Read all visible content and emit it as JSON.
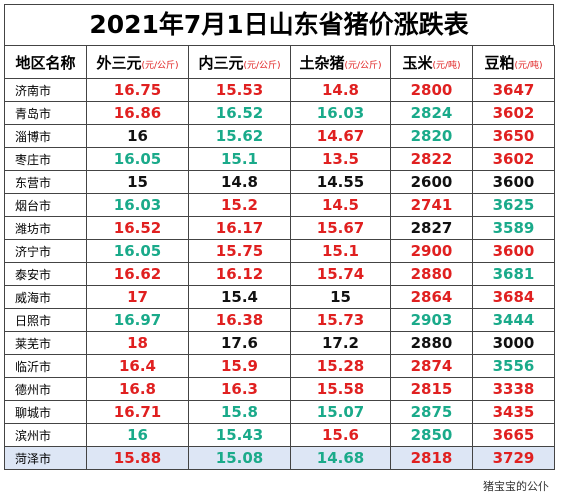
{
  "title": "2021年7月1日山东省猪价涨跌表",
  "table": {
    "headers": [
      {
        "name": "地区名称"
      },
      {
        "name": "外三元",
        "unit": "(元/公斤)"
      },
      {
        "name": "内三元",
        "unit": "(元/公斤)"
      },
      {
        "name": "土杂猪",
        "unit": "(元/公斤)"
      },
      {
        "name": "玉米",
        "unit": "(元/吨)"
      },
      {
        "name": "豆粕",
        "unit": "(元/吨)"
      }
    ],
    "rows": [
      [
        "济南市",
        "16.75",
        "15.53",
        "14.8",
        "2800",
        "3647"
      ],
      [
        "青岛市",
        "16.86",
        "16.52",
        "16.03",
        "2824",
        "3602"
      ],
      [
        "淄博市",
        "16",
        "15.62",
        "14.67",
        "2820",
        "3650"
      ],
      [
        "枣庄市",
        "16.05",
        "15.1",
        "13.5",
        "2822",
        "3602"
      ],
      [
        "东营市",
        "15",
        "14.8",
        "14.55",
        "2600",
        "3600"
      ],
      [
        "烟台市",
        "16.03",
        "15.2",
        "14.5",
        "2741",
        "3625"
      ],
      [
        "潍坊市",
        "16.52",
        "16.17",
        "15.67",
        "2827",
        "3589"
      ],
      [
        "济宁市",
        "16.05",
        "15.75",
        "15.1",
        "2900",
        "3600"
      ],
      [
        "泰安市",
        "16.62",
        "16.12",
        "15.74",
        "2880",
        "3681"
      ],
      [
        "威海市",
        "17",
        "15.4",
        "15",
        "2864",
        "3684"
      ],
      [
        "日照市",
        "16.97",
        "16.38",
        "15.73",
        "2903",
        "3444"
      ],
      [
        "莱芜市",
        "18",
        "17.6",
        "17.2",
        "2880",
        "3000"
      ],
      [
        "临沂市",
        "16.4",
        "15.9",
        "15.28",
        "2874",
        "3556"
      ],
      [
        "德州市",
        "16.8",
        "16.3",
        "15.58",
        "2815",
        "3338"
      ],
      [
        "聊城市",
        "16.71",
        "15.8",
        "15.07",
        "2875",
        "3435"
      ],
      [
        "滨州市",
        "16",
        "15.43",
        "15.6",
        "2850",
        "3665"
      ],
      [
        "菏泽市",
        "15.88",
        "15.08",
        "14.68",
        "2818",
        "3729"
      ]
    ],
    "colors": [
      [
        "#e02020",
        "#e02020",
        "#e02020",
        "#e02020",
        "#e02020"
      ],
      [
        "#e02020",
        "#1aaa8a",
        "#1aaa8a",
        "#1aaa8a",
        "#e02020"
      ],
      [
        "#111111",
        "#1aaa8a",
        "#e02020",
        "#1aaa8a",
        "#e02020"
      ],
      [
        "#1aaa8a",
        "#1aaa8a",
        "#e02020",
        "#e02020",
        "#e02020"
      ],
      [
        "#111111",
        "#111111",
        "#111111",
        "#111111",
        "#111111"
      ],
      [
        "#1aaa8a",
        "#e02020",
        "#e02020",
        "#e02020",
        "#1aaa8a"
      ],
      [
        "#e02020",
        "#e02020",
        "#e02020",
        "#111111",
        "#1aaa8a"
      ],
      [
        "#1aaa8a",
        "#e02020",
        "#e02020",
        "#e02020",
        "#e02020"
      ],
      [
        "#e02020",
        "#e02020",
        "#e02020",
        "#e02020",
        "#1aaa8a"
      ],
      [
        "#e02020",
        "#111111",
        "#111111",
        "#e02020",
        "#e02020"
      ],
      [
        "#1aaa8a",
        "#e02020",
        "#e02020",
        "#1aaa8a",
        "#1aaa8a"
      ],
      [
        "#e02020",
        "#111111",
        "#111111",
        "#111111",
        "#111111"
      ],
      [
        "#e02020",
        "#e02020",
        "#e02020",
        "#e02020",
        "#1aaa8a"
      ],
      [
        "#e02020",
        "#e02020",
        "#e02020",
        "#e02020",
        "#e02020"
      ],
      [
        "#e02020",
        "#1aaa8a",
        "#1aaa8a",
        "#1aaa8a",
        "#e02020"
      ],
      [
        "#1aaa8a",
        "#1aaa8a",
        "#e02020",
        "#1aaa8a",
        "#e02020"
      ],
      [
        "#e02020",
        "#1aaa8a",
        "#1aaa8a",
        "#e02020",
        "#e02020"
      ]
    ]
  },
  "footer": "猪宝宝的公仆"
}
